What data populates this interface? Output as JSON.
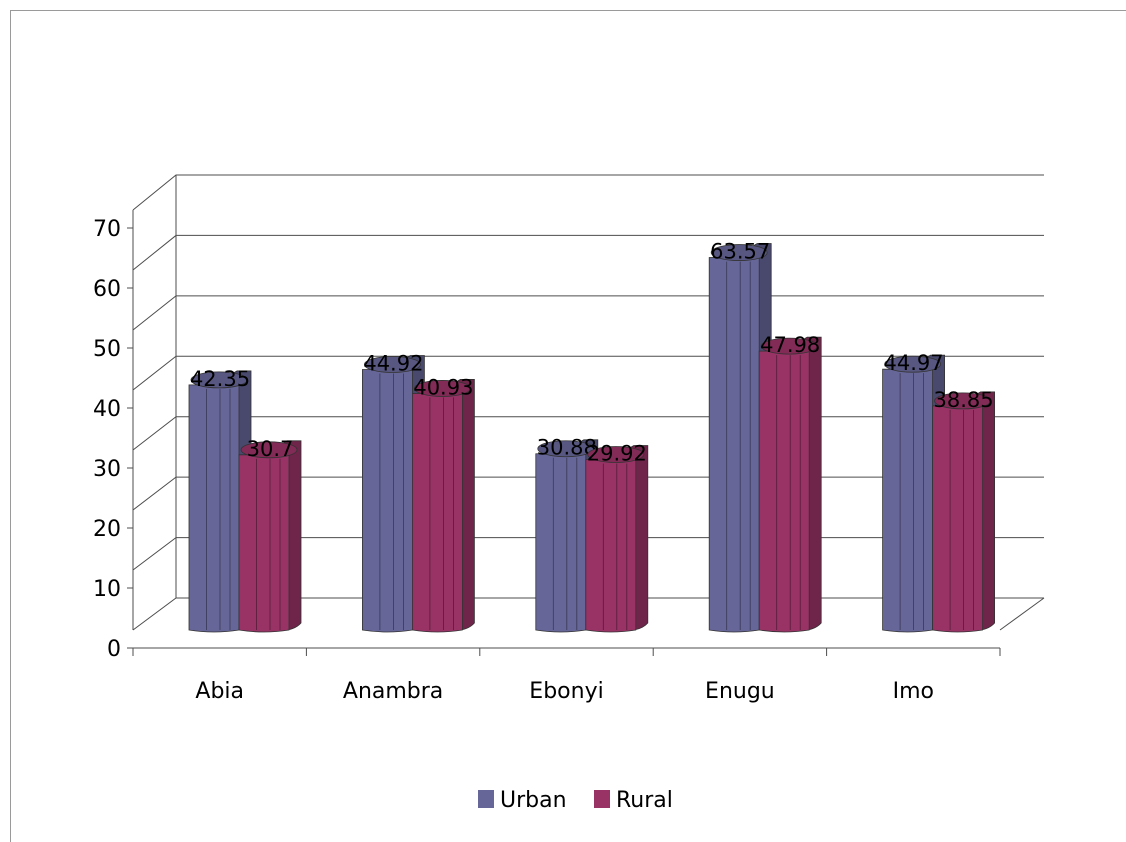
{
  "chart_data": {
    "type": "bar",
    "style": "3d-cylinder",
    "categories": [
      "Abia",
      "Anambra",
      "Ebonyi",
      "Enugu",
      "Imo"
    ],
    "series": [
      {
        "name": "Urban",
        "values": [
          42.35,
          44.92,
          30.88,
          63.57,
          44.97
        ],
        "color": "#666699"
      },
      {
        "name": "Rural",
        "values": [
          30.7,
          40.93,
          29.92,
          47.98,
          38.85
        ],
        "color": "#993366"
      }
    ],
    "data_labels": {
      "Urban": [
        "42.35",
        "44.92",
        "30.88",
        "63.57",
        "44.97"
      ],
      "Rural": [
        "30.7",
        "40.93",
        "29.92",
        "47.98",
        "38.85"
      ]
    },
    "yticks": [
      "0",
      "10",
      "20",
      "30",
      "40",
      "50",
      "60",
      "70"
    ],
    "ylim": [
      0,
      70
    ],
    "grid": true,
    "legend": "bottom",
    "title": "",
    "xlabel": "",
    "ylabel": ""
  }
}
